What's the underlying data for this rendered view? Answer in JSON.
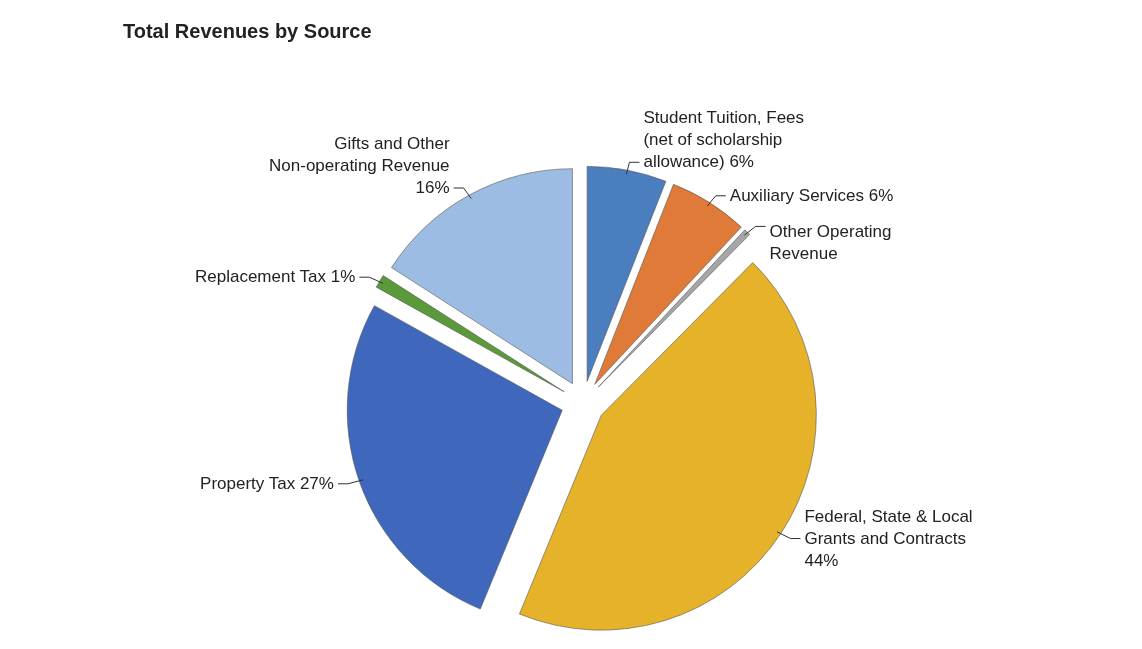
{
  "chart_data": {
    "type": "pie",
    "title": "Total Revenues by Source",
    "categories": [
      "Student Tuition, Fees (net of scholarship allowance)",
      "Auxiliary Services",
      "Other Operating Revenue",
      "Federal, State & Local Grants and Contracts",
      "Property Tax",
      "Replacement Tax",
      "Gifts and Other Non-operating Revenue"
    ],
    "values": [
      6,
      6,
      0.5,
      44,
      27,
      1,
      16
    ],
    "value_labels": [
      "6%",
      "6%",
      null,
      "44%",
      "27%",
      "1%",
      "16%"
    ],
    "colors": [
      "#4a7ebf",
      "#e07a38",
      "#a6a6a6",
      "#e5b22a",
      "#3f67bb",
      "#5a9a3a",
      "#9dbce4"
    ]
  }
}
